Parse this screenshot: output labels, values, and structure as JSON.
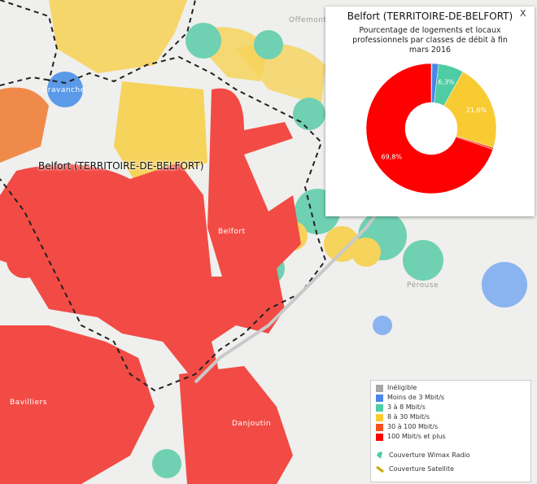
{
  "map": {
    "region_label": "Belfort (TERRITOIRE-DE-BELFORT)",
    "place_labels": [
      "Belfort",
      "Danjoutin",
      "Bavilliers",
      "Pérouse",
      "Cravanche",
      "Offemont"
    ],
    "close": "X",
    "coverage": [
      "Couverture Wimax Radio",
      "Couverture Satellite"
    ]
  },
  "chart_data": {
    "type": "pie",
    "title": "Belfort (TERRITOIRE-DE-BELFORT)",
    "subtitle": "Pourcentage de logements et locaux professionnels par classes de débit à fin mars 2016",
    "categories": [
      "Inéligible",
      "Moins de 3 Mbit/s",
      "3 à 8 Mbit/s",
      "8 à 30 Mbit/s",
      "30 à 100 Mbit/s",
      "100 Mbit/s et plus"
    ],
    "values": [
      0.2,
      1.6,
      6.3,
      21.6,
      0.5,
      69.8
    ],
    "value_labels": [
      null,
      null,
      "6,3%",
      "21,6%",
      null,
      "69,8%"
    ],
    "colors": [
      "#a6a6a6",
      "#4a86e8",
      "#4ecca3",
      "#f9cb32",
      "#f4511e",
      "#ff0000"
    ]
  }
}
